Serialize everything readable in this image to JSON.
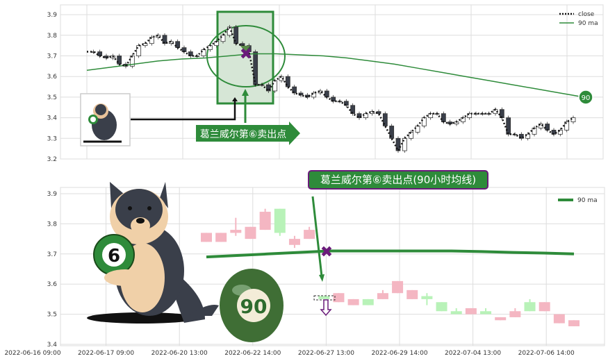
{
  "colors": {
    "accent": "#2e8b3a",
    "marker": "#6a1b7a",
    "up": "#f4b6c2",
    "down": "#b8f2b8",
    "dark": "#3a3f4a"
  },
  "chart_data": [
    {
      "type": "line",
      "panel": "top",
      "ylim": [
        3.2,
        3.95
      ],
      "yticks": [
        "3.2",
        "3.3",
        "3.4",
        "3.5",
        "3.6",
        "3.7",
        "3.8",
        "3.9"
      ],
      "grid": true,
      "legend": {
        "placement": "top-right",
        "entries": [
          "close",
          "90 ma"
        ]
      },
      "series": [
        {
          "name": "close",
          "values": [
            3.72,
            3.72,
            3.7,
            3.69,
            3.7,
            3.66,
            3.65,
            3.7,
            3.75,
            3.76,
            3.79,
            3.8,
            3.76,
            3.77,
            3.74,
            3.72,
            3.7,
            3.7,
            3.73,
            3.75,
            3.77,
            3.8,
            3.84,
            3.76,
            3.75,
            3.72,
            3.56,
            3.56,
            3.53,
            3.58,
            3.6,
            3.55,
            3.52,
            3.51,
            3.5,
            3.52,
            3.53,
            3.5,
            3.48,
            3.48,
            3.46,
            3.42,
            3.4,
            3.42,
            3.43,
            3.42,
            3.36,
            3.3,
            3.24,
            3.3,
            3.33,
            3.36,
            3.4,
            3.42,
            3.42,
            3.38,
            3.37,
            3.38,
            3.4,
            3.42,
            3.42,
            3.42,
            3.42,
            3.44,
            3.4,
            3.32,
            3.32,
            3.3,
            3.32,
            3.35,
            3.37,
            3.34,
            3.32,
            3.34,
            3.38,
            3.4
          ]
        },
        {
          "name": "90 ma",
          "values": [
            3.63,
            3.645,
            3.66,
            3.675,
            3.685,
            3.69,
            3.7,
            3.71,
            3.71,
            3.705,
            3.7,
            3.69,
            3.675,
            3.66,
            3.64,
            3.62,
            3.6,
            3.58,
            3.56,
            3.54,
            3.52,
            3.5
          ]
        }
      ],
      "annotations": {
        "sell_label": "葛兰威尔第⑥卖出点",
        "ma_badge": "90",
        "sell_value": 3.71
      }
    },
    {
      "type": "candlestick",
      "panel": "bottom",
      "ylim": [
        3.4,
        3.92
      ],
      "yticks": [
        "3.4",
        "3.5",
        "3.6",
        "3.7",
        "3.8",
        "3.9"
      ],
      "xticks": [
        "2022-06-16 09:00",
        "2022-06-17 09:00",
        "2022-06-20 13:00",
        "2022-06-22 14:00",
        "2022-06-27 13:00",
        "2022-06-29 14:00",
        "2022-07-04 13:00",
        "2022-07-06 14:00"
      ],
      "grid": true,
      "legend": {
        "placement": "top-right",
        "entries": [
          "90 ma"
        ]
      },
      "candles": [
        {
          "o": 3.77,
          "c": 3.74,
          "h": 3.77,
          "l": 3.74,
          "up": true
        },
        {
          "o": 3.77,
          "c": 3.74,
          "h": 3.77,
          "l": 3.74,
          "up": true
        },
        {
          "o": 3.78,
          "c": 3.77,
          "h": 3.82,
          "l": 3.76,
          "up": true
        },
        {
          "o": 3.79,
          "c": 3.75,
          "h": 3.79,
          "l": 3.75,
          "up": true
        },
        {
          "o": 3.84,
          "c": 3.78,
          "h": 3.85,
          "l": 3.78,
          "up": true
        },
        {
          "o": 3.77,
          "c": 3.85,
          "h": 3.85,
          "l": 3.76,
          "up": false
        },
        {
          "o": 3.75,
          "c": 3.73,
          "h": 3.76,
          "l": 3.72,
          "up": true
        },
        {
          "o": 3.78,
          "c": 3.75,
          "h": 3.79,
          "l": 3.75,
          "up": true
        },
        {
          "o": 3.56,
          "c": 3.55,
          "h": 3.56,
          "l": 3.55,
          "up": false
        },
        {
          "o": 3.57,
          "c": 3.54,
          "h": 3.57,
          "l": 3.54,
          "up": true
        },
        {
          "o": 3.55,
          "c": 3.53,
          "h": 3.55,
          "l": 3.53,
          "up": true
        },
        {
          "o": 3.53,
          "c": 3.55,
          "h": 3.55,
          "l": 3.53,
          "up": false
        },
        {
          "o": 3.57,
          "c": 3.55,
          "h": 3.58,
          "l": 3.55,
          "up": true
        },
        {
          "o": 3.61,
          "c": 3.57,
          "h": 3.61,
          "l": 3.57,
          "up": true
        },
        {
          "o": 3.58,
          "c": 3.55,
          "h": 3.58,
          "l": 3.55,
          "up": true
        },
        {
          "o": 3.56,
          "c": 3.55,
          "h": 3.57,
          "l": 3.53,
          "up": false
        },
        {
          "o": 3.54,
          "c": 3.51,
          "h": 3.54,
          "l": 3.51,
          "up": false
        },
        {
          "o": 3.51,
          "c": 3.5,
          "h": 3.52,
          "l": 3.5,
          "up": false
        },
        {
          "o": 3.52,
          "c": 3.5,
          "h": 3.52,
          "l": 3.5,
          "up": true
        },
        {
          "o": 3.51,
          "c": 3.5,
          "h": 3.52,
          "l": 3.5,
          "up": false
        },
        {
          "o": 3.49,
          "c": 3.48,
          "h": 3.49,
          "l": 3.48,
          "up": true
        },
        {
          "o": 3.51,
          "c": 3.49,
          "h": 3.52,
          "l": 3.49,
          "up": true
        },
        {
          "o": 3.51,
          "c": 3.54,
          "h": 3.55,
          "l": 3.51,
          "up": false
        },
        {
          "o": 3.54,
          "c": 3.51,
          "h": 3.54,
          "l": 3.51,
          "up": true
        },
        {
          "o": 3.5,
          "c": 3.47,
          "h": 3.5,
          "l": 3.47,
          "up": true
        },
        {
          "o": 3.48,
          "c": 3.46,
          "h": 3.48,
          "l": 3.46,
          "up": true
        }
      ],
      "ma90": [
        3.69,
        3.695,
        3.7,
        3.705,
        3.71,
        3.71,
        3.71,
        3.71,
        3.71,
        3.708,
        3.705,
        3.703,
        3.7
      ],
      "annotations": {
        "title_label": "葛兰威尔第⑥卖出点(90小时均线)",
        "ball_6": "6",
        "ball_90": "90"
      }
    }
  ]
}
